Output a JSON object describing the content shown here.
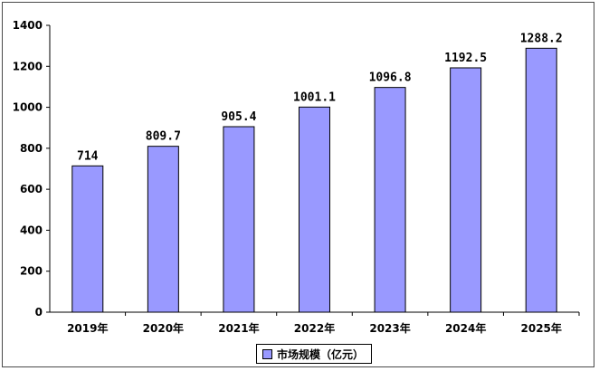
{
  "chart_data": {
    "type": "bar",
    "categories": [
      "2019年",
      "2020年",
      "2021年",
      "2022年",
      "2023年",
      "2024年",
      "2025年"
    ],
    "series": [
      {
        "name": "市场规模（亿元）",
        "values": [
          714,
          809.7,
          905.4,
          1001.1,
          1096.8,
          1192.5,
          1288.2
        ],
        "labels": [
          "714",
          "809.7",
          "905.4",
          "1001.1",
          "1096.8",
          "1192.5",
          "1288.2"
        ],
        "color": "#9999ff"
      }
    ],
    "ylim": [
      0,
      1400
    ],
    "yticks": [
      "0",
      "200",
      "400",
      "600",
      "800",
      "1000",
      "1200",
      "1400"
    ],
    "title": "",
    "xlabel": "",
    "ylabel": "",
    "grid": false,
    "legend_position": "bottom"
  }
}
